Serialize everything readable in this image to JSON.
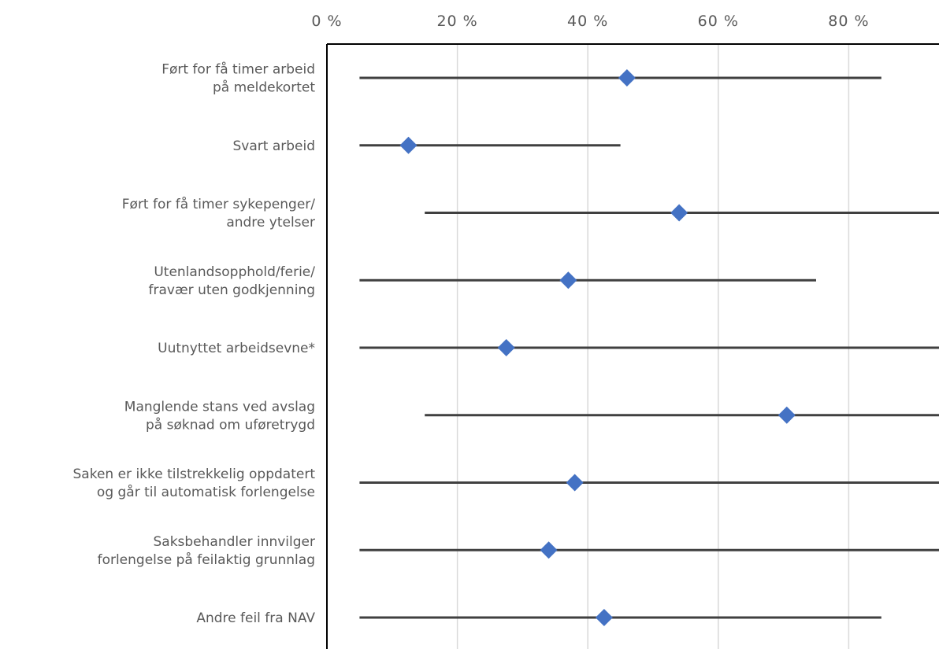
{
  "chart_data": {
    "type": "scatter",
    "orientation": "horizontal",
    "title": "",
    "xlabel": "",
    "ylabel": "",
    "xlim": [
      0,
      100
    ],
    "x_ticks": [
      "0 %",
      "20 %",
      "40 %",
      "60 %",
      "80 %"
    ],
    "x_tick_values": [
      0,
      20,
      40,
      60,
      80
    ],
    "x_axis_position": "top",
    "grid": true,
    "legend": "none",
    "marker_color": "#4472C4",
    "range_line_color": "#404040",
    "categories": [
      {
        "lines": [
          "Ført for få timer arbeid",
          "på meldekortet"
        ],
        "low": 5,
        "value": 46,
        "high": 85
      },
      {
        "lines": [
          "Svart arbeid"
        ],
        "low": 5,
        "value": 12.5,
        "high": 45
      },
      {
        "lines": [
          "Ført for få timer sykepenger/",
          "andre ytelser"
        ],
        "low": 15,
        "value": 54,
        "high": 100
      },
      {
        "lines": [
          "Utenlandsopphold/ferie/",
          "fravær uten godkjenning"
        ],
        "low": 5,
        "value": 37,
        "high": 75
      },
      {
        "lines": [
          "Uutnyttet arbeidsevne*"
        ],
        "low": 5,
        "value": 27.5,
        "high": 100
      },
      {
        "lines": [
          "Manglende stans ved avslag",
          "på søknad om uføretrygd"
        ],
        "low": 15,
        "value": 70.5,
        "high": 100
      },
      {
        "lines": [
          "Saken er ikke tilstrekkelig oppdatert",
          "og går til automatisk forlengelse"
        ],
        "low": 5,
        "value": 38,
        "high": 100
      },
      {
        "lines": [
          "Saksbehandler innvilger",
          "forlengelse på feilaktig grunnlag"
        ],
        "low": 5,
        "value": 34,
        "high": 100
      },
      {
        "lines": [
          "Andre feil fra NAV"
        ],
        "low": 5,
        "value": 42.5,
        "high": 85
      }
    ]
  }
}
